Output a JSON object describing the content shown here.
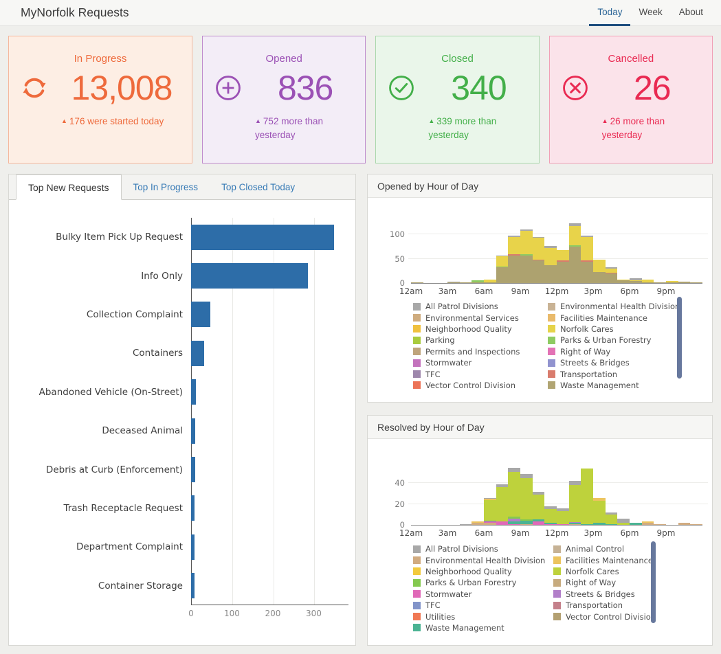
{
  "header": {
    "title": "MyNorfolk Requests",
    "tabs": [
      {
        "label": "Today",
        "active": true
      },
      {
        "label": "Week",
        "active": false
      },
      {
        "label": "About",
        "active": false
      }
    ]
  },
  "stat_cards": [
    {
      "title": "In Progress",
      "value": "13,008",
      "delta": "176 were started today",
      "icon": "refresh-icon",
      "color": "#ee6a3c",
      "bg": "#fdeee4",
      "border": "#f5b79c"
    },
    {
      "title": "Opened",
      "value": "836",
      "delta": "752 more than yesterday",
      "icon": "plus-circle-icon",
      "color": "#9b51b5",
      "bg": "#f3edf7",
      "border": "#bf8ccd"
    },
    {
      "title": "Closed",
      "value": "340",
      "delta": "339 more than yesterday",
      "icon": "check-circle-icon",
      "color": "#43af49",
      "bg": "#eaf6ea",
      "border": "#abd8ad"
    },
    {
      "title": "Cancelled",
      "value": "26",
      "delta": "26 more than yesterday",
      "icon": "x-circle-icon",
      "color": "#e92a52",
      "bg": "#fbe3ea",
      "border": "#f1a0b6"
    }
  ],
  "requests_panel": {
    "tabs": [
      {
        "label": "Top New Requests",
        "active": true
      },
      {
        "label": "Top In Progress",
        "active": false
      },
      {
        "label": "Top Closed Today",
        "active": false
      }
    ]
  },
  "panels": {
    "opened": {
      "title": "Opened by Hour of Day"
    },
    "resolved": {
      "title": "Resolved by Hour of Day"
    }
  },
  "chart_data": [
    {
      "id": "top_new_requests",
      "type": "bar",
      "orientation": "horizontal",
      "title": "Top New Requests",
      "categories": [
        "Bulky Item Pick Up Request",
        "Info Only",
        "Collection Complaint",
        "Containers",
        "Abandoned Vehicle (On-Street)",
        "Deceased Animal",
        "Debris at Curb (Enforcement)",
        "Trash Receptacle Request",
        "Department Complaint",
        "Container Storage"
      ],
      "values": [
        350,
        286,
        47,
        32,
        12,
        10,
        10,
        9,
        9,
        8
      ],
      "bar_color": "#2d6da8",
      "xticks": [
        0,
        100,
        200,
        300
      ],
      "xlim": [
        0,
        385
      ],
      "grid": true
    },
    {
      "id": "opened_by_hour",
      "type": "bar",
      "subtype": "stacked",
      "title": "Opened by Hour of Day",
      "x": [
        "12am",
        "1am",
        "2am",
        "3am",
        "4am",
        "5am",
        "6am",
        "7am",
        "8am",
        "9am",
        "10am",
        "11am",
        "12pm",
        "1pm",
        "2pm",
        "3pm",
        "4pm",
        "5pm",
        "6pm",
        "7pm",
        "8pm",
        "9pm",
        "10pm",
        "11pm"
      ],
      "xtick_indices": [
        0,
        3,
        6,
        9,
        12,
        15,
        18,
        21
      ],
      "xtick_labels": [
        "12am",
        "3am",
        "6am",
        "9am",
        "12pm",
        "3pm",
        "6pm",
        "9pm"
      ],
      "yticks": [
        0,
        50,
        100
      ],
      "ylim": [
        0,
        162
      ],
      "series": [
        {
          "name": "Waste Management",
          "color": "#ada26f",
          "values": [
            1,
            0,
            0,
            2,
            2,
            2,
            2,
            32,
            56,
            57,
            47,
            36,
            44,
            74,
            44,
            22,
            20,
            5,
            4,
            1,
            1,
            1,
            3,
            2
          ]
        },
        {
          "name": "Parks & Urban Forestry",
          "color": "#8ecb62",
          "values": [
            0,
            0,
            0,
            0,
            0,
            3,
            0,
            2,
            1,
            2,
            0,
            0,
            0,
            3,
            0,
            0,
            0,
            0,
            0,
            0,
            0,
            0,
            0,
            0
          ]
        },
        {
          "name": "Transportation",
          "color": "#d97c6d",
          "values": [
            0,
            0,
            0,
            0,
            0,
            0,
            0,
            0,
            2,
            0,
            1,
            1,
            2,
            0,
            2,
            1,
            1,
            0,
            0,
            0,
            0,
            0,
            0,
            0
          ]
        },
        {
          "name": "Norfolk Cares",
          "color": "#e8d34a",
          "values": [
            0,
            0,
            0,
            0,
            0,
            0,
            5,
            21,
            35,
            48,
            45,
            35,
            21,
            40,
            48,
            25,
            8,
            2,
            2,
            6,
            1,
            3,
            0,
            0
          ]
        },
        {
          "name": "All Patrol Divisions",
          "color": "#a8a8a8",
          "values": [
            0,
            0,
            0,
            1,
            0,
            0,
            0,
            2,
            3,
            3,
            2,
            4,
            0,
            5,
            3,
            0,
            4,
            0,
            4,
            0,
            0,
            0,
            0,
            0
          ]
        }
      ],
      "legend_position": "bottom",
      "legend_columns": [
        [
          {
            "name": "All Patrol Divisions",
            "color": "#a8a8a8"
          },
          {
            "name": "Environmental Services",
            "color": "#cfac7f"
          },
          {
            "name": "Neighborhood Quality",
            "color": "#f0c13e"
          },
          {
            "name": "Parking",
            "color": "#a9cb3e"
          },
          {
            "name": "Permits and Inspections",
            "color": "#bfa47b"
          },
          {
            "name": "Stormwater",
            "color": "#c473bd"
          },
          {
            "name": "TFC",
            "color": "#9e87ac"
          },
          {
            "name": "Vector Control Division",
            "color": "#ec7357"
          }
        ],
        [
          {
            "name": "Environmental Health Division",
            "color": "#c9b395"
          },
          {
            "name": "Facilities Maintenance",
            "color": "#e9ba6b"
          },
          {
            "name": "Norfolk Cares",
            "color": "#e5d34a"
          },
          {
            "name": "Parks & Urban Forestry",
            "color": "#8ecb62"
          },
          {
            "name": "Right of Way",
            "color": "#e372b5"
          },
          {
            "name": "Streets & Bridges",
            "color": "#9193cf"
          },
          {
            "name": "Transportation",
            "color": "#d97c6d"
          },
          {
            "name": "Waste Management",
            "color": "#b1a573"
          }
        ]
      ]
    },
    {
      "id": "resolved_by_hour",
      "type": "bar",
      "subtype": "stacked",
      "title": "Resolved by Hour of Day",
      "x": [
        "12am",
        "1am",
        "2am",
        "3am",
        "4am",
        "5am",
        "6am",
        "7am",
        "8am",
        "9am",
        "10am",
        "11am",
        "12pm",
        "1pm",
        "2pm",
        "3pm",
        "4pm",
        "5pm",
        "6pm",
        "7pm",
        "8pm",
        "9pm",
        "10pm",
        "11pm"
      ],
      "xtick_indices": [
        0,
        3,
        6,
        9,
        12,
        15,
        18,
        21
      ],
      "xtick_labels": [
        "12am",
        "3am",
        "6am",
        "9am",
        "12pm",
        "3pm",
        "6pm",
        "9pm"
      ],
      "yticks": [
        0,
        20,
        40
      ],
      "ylim": [
        0,
        66
      ],
      "series": [
        {
          "name": "Environmental Health Division",
          "color": "#d1ab80",
          "values": [
            0,
            0,
            0,
            0,
            0,
            2,
            2,
            0,
            0,
            1,
            0,
            0,
            0,
            1,
            0,
            0,
            0,
            0,
            0,
            2,
            1,
            0,
            2,
            1
          ]
        },
        {
          "name": "Stormwater",
          "color": "#e069b8",
          "values": [
            0,
            0,
            0,
            0,
            0,
            0,
            1,
            3,
            1,
            0,
            3,
            1,
            1,
            0,
            0,
            0,
            0,
            0,
            0,
            0,
            0,
            0,
            0,
            0
          ]
        },
        {
          "name": "Waste Management",
          "color": "#4bb393",
          "values": [
            0,
            0,
            0,
            0,
            0,
            0,
            1,
            0,
            2,
            3,
            2,
            1,
            0,
            1,
            1,
            2,
            1,
            0,
            2,
            0,
            0,
            0,
            0,
            0
          ]
        },
        {
          "name": "Streets & Bridges",
          "color": "#b27fc9",
          "values": [
            0,
            0,
            0,
            0,
            0,
            0,
            0,
            0,
            3,
            0,
            0,
            0,
            0,
            1,
            0,
            0,
            0,
            0,
            0,
            0,
            0,
            0,
            0,
            0
          ]
        },
        {
          "name": "Parks & Urban Forestry",
          "color": "#84c94f",
          "values": [
            0,
            0,
            0,
            0,
            0,
            0,
            0,
            0,
            2,
            1,
            0,
            0,
            0,
            0,
            0,
            0,
            0,
            0,
            0,
            0,
            0,
            0,
            0,
            0
          ]
        },
        {
          "name": "Norfolk Cares",
          "color": "#bed23c",
          "values": [
            0,
            0,
            0,
            0,
            0,
            0,
            20,
            33,
            43,
            40,
            24,
            13,
            12,
            35,
            53,
            21,
            9,
            2,
            0,
            0,
            0,
            0,
            0,
            0
          ]
        },
        {
          "name": "Facilities Maintenance",
          "color": "#ecc45e",
          "values": [
            0,
            0,
            0,
            0,
            0,
            1,
            1,
            0,
            0,
            0,
            0,
            0,
            0,
            0,
            0,
            3,
            0,
            0,
            0,
            1,
            0,
            0,
            0,
            0
          ]
        },
        {
          "name": "All Patrol Divisions",
          "color": "#a8a8a8",
          "values": [
            0,
            0,
            0,
            0,
            1,
            0,
            1,
            3,
            4,
            4,
            3,
            3,
            3,
            4,
            0,
            0,
            2,
            4,
            0,
            0,
            0,
            0,
            0,
            0
          ]
        }
      ],
      "legend_position": "bottom",
      "legend_columns": [
        [
          {
            "name": "All Patrol Divisions",
            "color": "#a8a8a8"
          },
          {
            "name": "Environmental Health Division",
            "color": "#d1ab80"
          },
          {
            "name": "Neighborhood Quality",
            "color": "#f2ca3d"
          },
          {
            "name": "Parks & Urban Forestry",
            "color": "#84c94f"
          },
          {
            "name": "Stormwater",
            "color": "#e069b8"
          },
          {
            "name": "TFC",
            "color": "#8294c9"
          },
          {
            "name": "Utilities",
            "color": "#f07854"
          },
          {
            "name": "Waste Management",
            "color": "#4bb393"
          }
        ],
        [
          {
            "name": "Animal Control",
            "color": "#c6b295"
          },
          {
            "name": "Facilities Maintenance",
            "color": "#ecc45e"
          },
          {
            "name": "Norfolk Cares",
            "color": "#bed23c"
          },
          {
            "name": "Right of Way",
            "color": "#c7ab7e"
          },
          {
            "name": "Streets & Bridges",
            "color": "#b27fc9"
          },
          {
            "name": "Transportation",
            "color": "#c4808a"
          },
          {
            "name": "Vector Control Division",
            "color": "#b3a071"
          }
        ]
      ]
    }
  ]
}
